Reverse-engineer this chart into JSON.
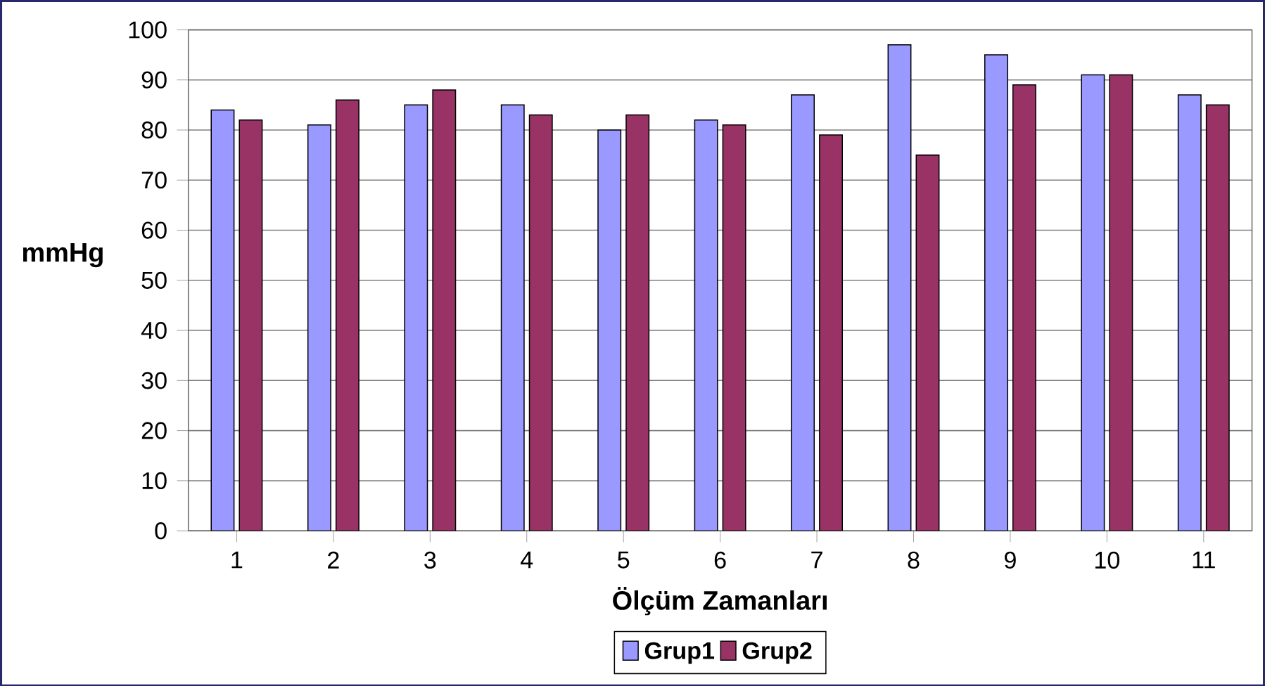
{
  "chart_data": {
    "type": "bar",
    "xlabel": "Ölçüm Zamanları",
    "ylabel": "mmHg",
    "categories": [
      "1",
      "2",
      "3",
      "4",
      "5",
      "6",
      "7",
      "8",
      "9",
      "10",
      "11"
    ],
    "series": [
      {
        "name": "Grup1",
        "color": "#9999ff",
        "values": [
          84,
          81,
          85,
          85,
          80,
          82,
          87,
          97,
          95,
          91,
          87
        ]
      },
      {
        "name": "Grup2",
        "color": "#993366",
        "values": [
          82,
          86,
          88,
          83,
          83,
          81,
          79,
          75,
          89,
          91,
          85
        ]
      }
    ],
    "ylim": [
      0,
      100
    ],
    "yticks": [
      0,
      10,
      20,
      30,
      40,
      50,
      60,
      70,
      80,
      90,
      100
    ],
    "grid": "y",
    "legend": "bottom"
  }
}
